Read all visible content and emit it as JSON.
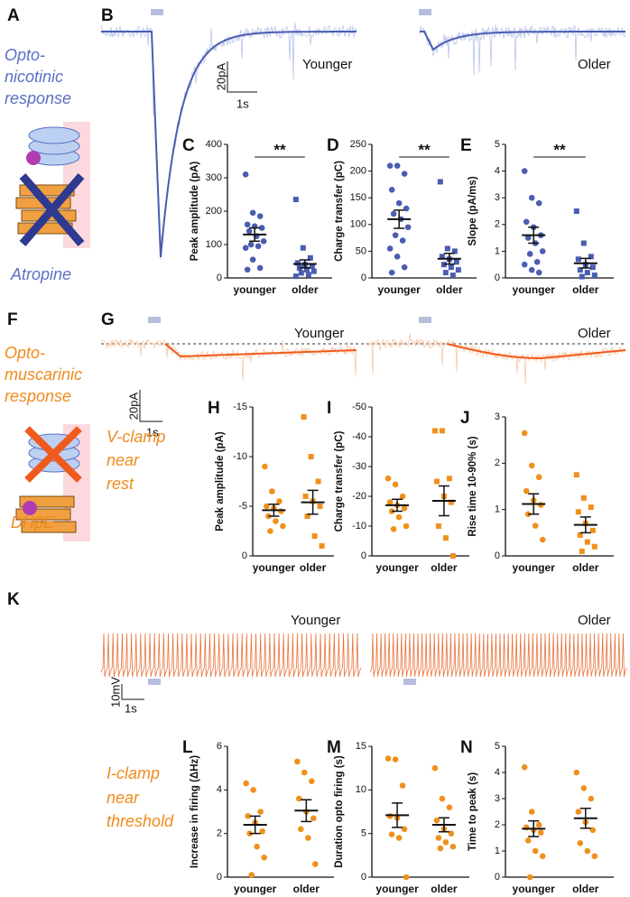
{
  "figure": {
    "texts": [
      "A",
      "B",
      "Opto-",
      "nicotinic",
      "response",
      "Atropine",
      "Younger",
      "Older",
      "20pA",
      "1s",
      "F",
      "G",
      "Opto-",
      "muscarinic",
      "response",
      "Younger",
      "Older",
      "20pA",
      "1s",
      "V-clamp",
      "near",
      "rest",
      "DHβE",
      "K",
      "Younger",
      "Older",
      "10mV",
      "1s",
      "I-clamp",
      "near",
      "threshold"
    ]
  },
  "chart_data": [
    {
      "type": "dot",
      "panel": "C",
      "ylabel": "Peak amplitude (pA)",
      "annotation": "**",
      "categories": [
        "younger",
        "older"
      ],
      "color": "#4a5db0",
      "markers": [
        "circle",
        "square"
      ],
      "ylim": [
        0,
        400
      ],
      "yticks": [
        0,
        100,
        200,
        300,
        400
      ],
      "points": [
        [
          310,
          195,
          185,
          160,
          155,
          150,
          140,
          125,
          110,
          100,
          95,
          90,
          55,
          30,
          25
        ],
        [
          235,
          90,
          60,
          45,
          40,
          35,
          30,
          25,
          20,
          15,
          10,
          5
        ]
      ],
      "mean": [
        130,
        42
      ],
      "sem": [
        20,
        12
      ]
    },
    {
      "type": "dot",
      "panel": "D",
      "ylabel": "Charge transfer (pC)",
      "annotation": "**",
      "categories": [
        "younger",
        "older"
      ],
      "color": "#4a5db0",
      "markers": [
        "circle",
        "square"
      ],
      "ylim": [
        0,
        250
      ],
      "yticks": [
        0,
        50,
        100,
        150,
        200,
        250
      ],
      "points": [
        [
          210,
          210,
          195,
          165,
          140,
          130,
          120,
          110,
          95,
          80,
          70,
          55,
          40,
          20,
          10
        ],
        [
          180,
          55,
          50,
          40,
          35,
          30,
          25,
          20,
          15,
          10,
          5
        ]
      ],
      "mean": [
        110,
        36
      ],
      "sem": [
        17,
        10
      ]
    },
    {
      "type": "dot",
      "panel": "E",
      "ylabel": "Slope (pA/ms)",
      "annotation": "**",
      "categories": [
        "younger",
        "older"
      ],
      "color": "#4a5db0",
      "markers": [
        "circle",
        "square"
      ],
      "ylim": [
        0,
        5
      ],
      "yticks": [
        0,
        1,
        2,
        3,
        4,
        5
      ],
      "points": [
        [
          4.0,
          3.0,
          2.8,
          2.1,
          1.9,
          1.6,
          1.5,
          1.3,
          1.0,
          0.9,
          0.6,
          0.5,
          0.3,
          0.2
        ],
        [
          2.5,
          1.3,
          0.8,
          0.7,
          0.5,
          0.4,
          0.3,
          0.2,
          0.1,
          0.05
        ]
      ],
      "mean": [
        1.6,
        0.55
      ],
      "sem": [
        0.3,
        0.18
      ]
    },
    {
      "type": "dot",
      "panel": "H",
      "ylabel": "Peak amplitude (pA)",
      "categories": [
        "younger",
        "older"
      ],
      "color": "#f0901c",
      "markers": [
        "circle",
        "square"
      ],
      "ylim": [
        0,
        -15
      ],
      "yticks": [
        0,
        -5,
        -10,
        -15
      ],
      "points": [
        [
          -9,
          -6.5,
          -5.5,
          -5,
          -4.8,
          -4.5,
          -4,
          -3.5,
          -3,
          -2.5
        ],
        [
          -14,
          -10,
          -7.5,
          -6,
          -5.5,
          -5,
          -4,
          -2,
          -1
        ]
      ],
      "mean": [
        -4.6,
        -5.4
      ],
      "sem": [
        0.6,
        1.2
      ]
    },
    {
      "type": "dot",
      "panel": "I",
      "ylabel": "Charge transfer (pC)",
      "categories": [
        "younger",
        "older"
      ],
      "color": "#f0901c",
      "markers": [
        "circle",
        "square"
      ],
      "ylim": [
        0,
        -50
      ],
      "yticks": [
        0,
        -10,
        -20,
        -30,
        -40,
        -50
      ],
      "points": [
        [
          -26,
          -24,
          -20,
          -18,
          -17,
          -16,
          -15,
          -13,
          -10,
          -9
        ],
        [
          -42,
          -42,
          -26,
          -25,
          -20,
          -18,
          -10,
          -6,
          0
        ]
      ],
      "mean": [
        -17,
        -18.5
      ],
      "sem": [
        2,
        5
      ]
    },
    {
      "type": "dot",
      "panel": "J",
      "ylabel": "Rise time 10-90% (s)",
      "categories": [
        "younger",
        "older"
      ],
      "color": "#f0901c",
      "markers": [
        "circle",
        "square"
      ],
      "ylim": [
        0,
        3
      ],
      "yticks": [
        0,
        1,
        2,
        3
      ],
      "points": [
        [
          2.65,
          1.95,
          1.7,
          1.4,
          1.2,
          1.1,
          0.9,
          0.65,
          0.35
        ],
        [
          1.75,
          1.25,
          1.05,
          0.95,
          0.7,
          0.55,
          0.45,
          0.3,
          0.2,
          0.1
        ]
      ],
      "mean": [
        1.12,
        0.67
      ],
      "sem": [
        0.22,
        0.17
      ]
    },
    {
      "type": "dot",
      "panel": "L",
      "ylabel": "Increase in firing (ΔHz)",
      "categories": [
        "younger",
        "older"
      ],
      "color": "#f0901c",
      "markers": [
        "circle",
        "circle"
      ],
      "ylim": [
        0,
        6
      ],
      "yticks": [
        0,
        2,
        4,
        6
      ],
      "points": [
        [
          4.3,
          4.0,
          3.0,
          2.8,
          2.5,
          2.1,
          2.0,
          1.4,
          0.9,
          0.1
        ],
        [
          5.3,
          4.8,
          4.4,
          3.6,
          3.0,
          2.7,
          2.2,
          1.8,
          0.6
        ]
      ],
      "mean": [
        2.4,
        3.05
      ],
      "sem": [
        0.4,
        0.5
      ]
    },
    {
      "type": "dot",
      "panel": "M",
      "ylabel": "Duration opto firing (s)",
      "categories": [
        "younger",
        "older"
      ],
      "color": "#f0901c",
      "markers": [
        "circle",
        "circle"
      ],
      "ylim": [
        0,
        15
      ],
      "yticks": [
        0,
        5,
        10,
        15
      ],
      "points": [
        [
          13.6,
          13.5,
          10.5,
          7,
          6.8,
          5.5,
          4.9,
          4.5,
          0
        ],
        [
          12.5,
          9,
          8,
          6.5,
          5.5,
          5.0,
          4.5,
          4.0,
          3.5,
          3.3
        ]
      ],
      "mean": [
        7.1,
        6.0
      ],
      "sem": [
        1.4,
        0.8
      ]
    },
    {
      "type": "dot",
      "panel": "N",
      "ylabel": "Time to peak (s)",
      "categories": [
        "younger",
        "older"
      ],
      "color": "#f0901c",
      "markers": [
        "circle",
        "circle"
      ],
      "ylim": [
        0,
        5
      ],
      "yticks": [
        0,
        1,
        2,
        3,
        4,
        5
      ],
      "points": [
        [
          4.2,
          2.5,
          2.0,
          1.9,
          1.8,
          1.7,
          1.4,
          1.0,
          0.8,
          0.0
        ],
        [
          4.0,
          3.4,
          3.0,
          2.5,
          2.1,
          1.8,
          1.3,
          1.0,
          0.8
        ]
      ],
      "mean": [
        1.85,
        2.25
      ],
      "sem": [
        0.3,
        0.38
      ]
    }
  ]
}
